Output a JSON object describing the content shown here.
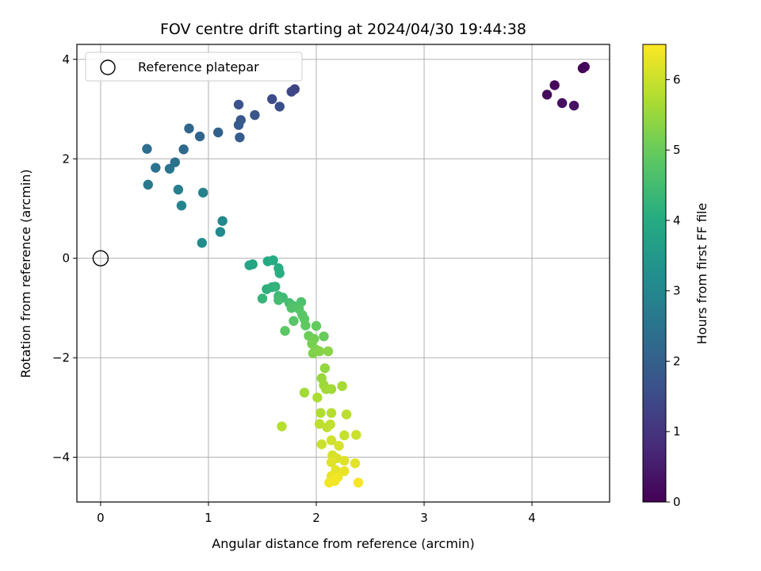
{
  "chart_data": {
    "type": "scatter",
    "title": "FOV centre drift starting at 2024/04/30 19:44:38",
    "xlabel": "Angular distance from reference (arcmin)",
    "ylabel": "Rotation from reference (arcmin)",
    "xlim": [
      -0.22,
      4.72
    ],
    "ylim": [
      -4.9,
      4.3
    ],
    "xticks": [
      0,
      1,
      2,
      3,
      4
    ],
    "yticks": [
      -4,
      -2,
      0,
      2,
      4
    ],
    "grid": true,
    "legend": {
      "placement": "top-left",
      "entries": [
        "Reference platepar"
      ]
    },
    "reference_point": {
      "name": "Reference platepar",
      "x": 0,
      "y": 0
    },
    "colorbar": {
      "label": "Hours from first FF file",
      "colormap": "viridis",
      "range": [
        0,
        6.5
      ],
      "ticks": [
        0,
        1,
        2,
        3,
        4,
        5,
        6
      ]
    },
    "series": [
      {
        "color_by": "hours",
        "points": [
          [
            4.47,
            3.82,
            0.05
          ],
          [
            4.49,
            3.85,
            0.1
          ],
          [
            4.21,
            3.48,
            0.15
          ],
          [
            4.14,
            3.29,
            0.2
          ],
          [
            4.28,
            3.12,
            0.25
          ],
          [
            4.39,
            3.07,
            0.3
          ],
          [
            1.8,
            3.4,
            1.35
          ],
          [
            1.77,
            3.35,
            1.4
          ],
          [
            1.59,
            3.2,
            1.5
          ],
          [
            1.66,
            3.05,
            1.55
          ],
          [
            1.28,
            3.09,
            1.65
          ],
          [
            1.43,
            2.88,
            1.75
          ],
          [
            1.3,
            2.78,
            1.8
          ],
          [
            1.28,
            2.68,
            1.85
          ],
          [
            1.29,
            2.43,
            1.9
          ],
          [
            1.09,
            2.53,
            2.0
          ],
          [
            0.92,
            2.45,
            2.1
          ],
          [
            0.82,
            2.61,
            2.15
          ],
          [
            0.77,
            2.19,
            2.25
          ],
          [
            0.43,
            2.2,
            2.35
          ],
          [
            0.69,
            1.93,
            2.45
          ],
          [
            0.51,
            1.82,
            2.5
          ],
          [
            0.64,
            1.8,
            2.55
          ],
          [
            0.44,
            1.48,
            2.65
          ],
          [
            0.72,
            1.38,
            2.8
          ],
          [
            0.95,
            1.32,
            2.9
          ],
          [
            0.75,
            1.06,
            2.95
          ],
          [
            1.13,
            0.75,
            3.05
          ],
          [
            1.11,
            0.53,
            3.1
          ],
          [
            0.94,
            0.31,
            3.15
          ],
          [
            1.41,
            -0.12,
            3.8
          ],
          [
            1.38,
            -0.14,
            3.85
          ],
          [
            1.55,
            -0.06,
            3.95
          ],
          [
            1.6,
            -0.04,
            4.0
          ],
          [
            1.65,
            -0.2,
            4.05
          ],
          [
            1.66,
            -0.3,
            4.1
          ],
          [
            1.54,
            -0.62,
            4.15
          ],
          [
            1.59,
            -0.58,
            4.2
          ],
          [
            1.62,
            -0.57,
            4.25
          ],
          [
            1.5,
            -0.81,
            4.3
          ],
          [
            1.65,
            -0.76,
            4.4
          ],
          [
            1.69,
            -0.79,
            4.45
          ],
          [
            1.65,
            -0.84,
            4.5
          ],
          [
            1.75,
            -0.9,
            4.55
          ],
          [
            1.78,
            -0.95,
            4.6
          ],
          [
            1.86,
            -0.88,
            4.65
          ],
          [
            1.77,
            -1.0,
            4.7
          ],
          [
            1.84,
            -1.02,
            4.75
          ],
          [
            1.87,
            -1.14,
            4.8
          ],
          [
            1.79,
            -1.26,
            4.8
          ],
          [
            1.71,
            -1.46,
            4.85
          ],
          [
            1.89,
            -1.22,
            4.85
          ],
          [
            1.9,
            -1.35,
            4.9
          ],
          [
            2.0,
            -1.36,
            4.95
          ],
          [
            2.07,
            -1.57,
            5.0
          ],
          [
            1.93,
            -1.56,
            5.05
          ],
          [
            1.98,
            -1.62,
            5.1
          ],
          [
            1.96,
            -1.72,
            5.15
          ],
          [
            2.0,
            -1.84,
            5.2
          ],
          [
            1.97,
            -1.91,
            5.25
          ],
          [
            2.03,
            -1.87,
            5.3
          ],
          [
            2.11,
            -1.87,
            5.35
          ],
          [
            2.08,
            -2.21,
            5.45
          ],
          [
            2.05,
            -2.41,
            5.5
          ],
          [
            2.07,
            -2.55,
            5.55
          ],
          [
            2.09,
            -2.63,
            5.6
          ],
          [
            2.14,
            -2.63,
            5.6
          ],
          [
            2.24,
            -2.57,
            5.65
          ],
          [
            1.89,
            -2.7,
            5.6
          ],
          [
            2.01,
            -2.8,
            5.7
          ],
          [
            2.04,
            -3.11,
            5.75
          ],
          [
            2.14,
            -3.11,
            5.8
          ],
          [
            2.28,
            -3.14,
            5.85
          ],
          [
            2.03,
            -3.33,
            5.85
          ],
          [
            2.13,
            -3.34,
            5.9
          ],
          [
            2.1,
            -3.4,
            5.9
          ],
          [
            1.68,
            -3.38,
            5.8
          ],
          [
            2.26,
            -3.56,
            5.95
          ],
          [
            2.37,
            -3.55,
            6.0
          ],
          [
            2.05,
            -3.74,
            6.0
          ],
          [
            2.14,
            -3.66,
            6.05
          ],
          [
            2.21,
            -3.77,
            6.1
          ],
          [
            2.15,
            -3.96,
            6.1
          ],
          [
            2.19,
            -4.02,
            6.15
          ],
          [
            2.14,
            -4.1,
            6.2
          ],
          [
            2.26,
            -4.07,
            6.2
          ],
          [
            2.36,
            -4.12,
            6.25
          ],
          [
            2.18,
            -4.26,
            6.25
          ],
          [
            2.26,
            -4.28,
            6.3
          ],
          [
            2.14,
            -4.38,
            6.3
          ],
          [
            2.2,
            -4.4,
            6.35
          ],
          [
            2.17,
            -4.48,
            6.35
          ],
          [
            2.12,
            -4.51,
            6.4
          ],
          [
            2.16,
            -4.45,
            6.4
          ],
          [
            2.39,
            -4.51,
            6.45
          ]
        ]
      }
    ]
  }
}
